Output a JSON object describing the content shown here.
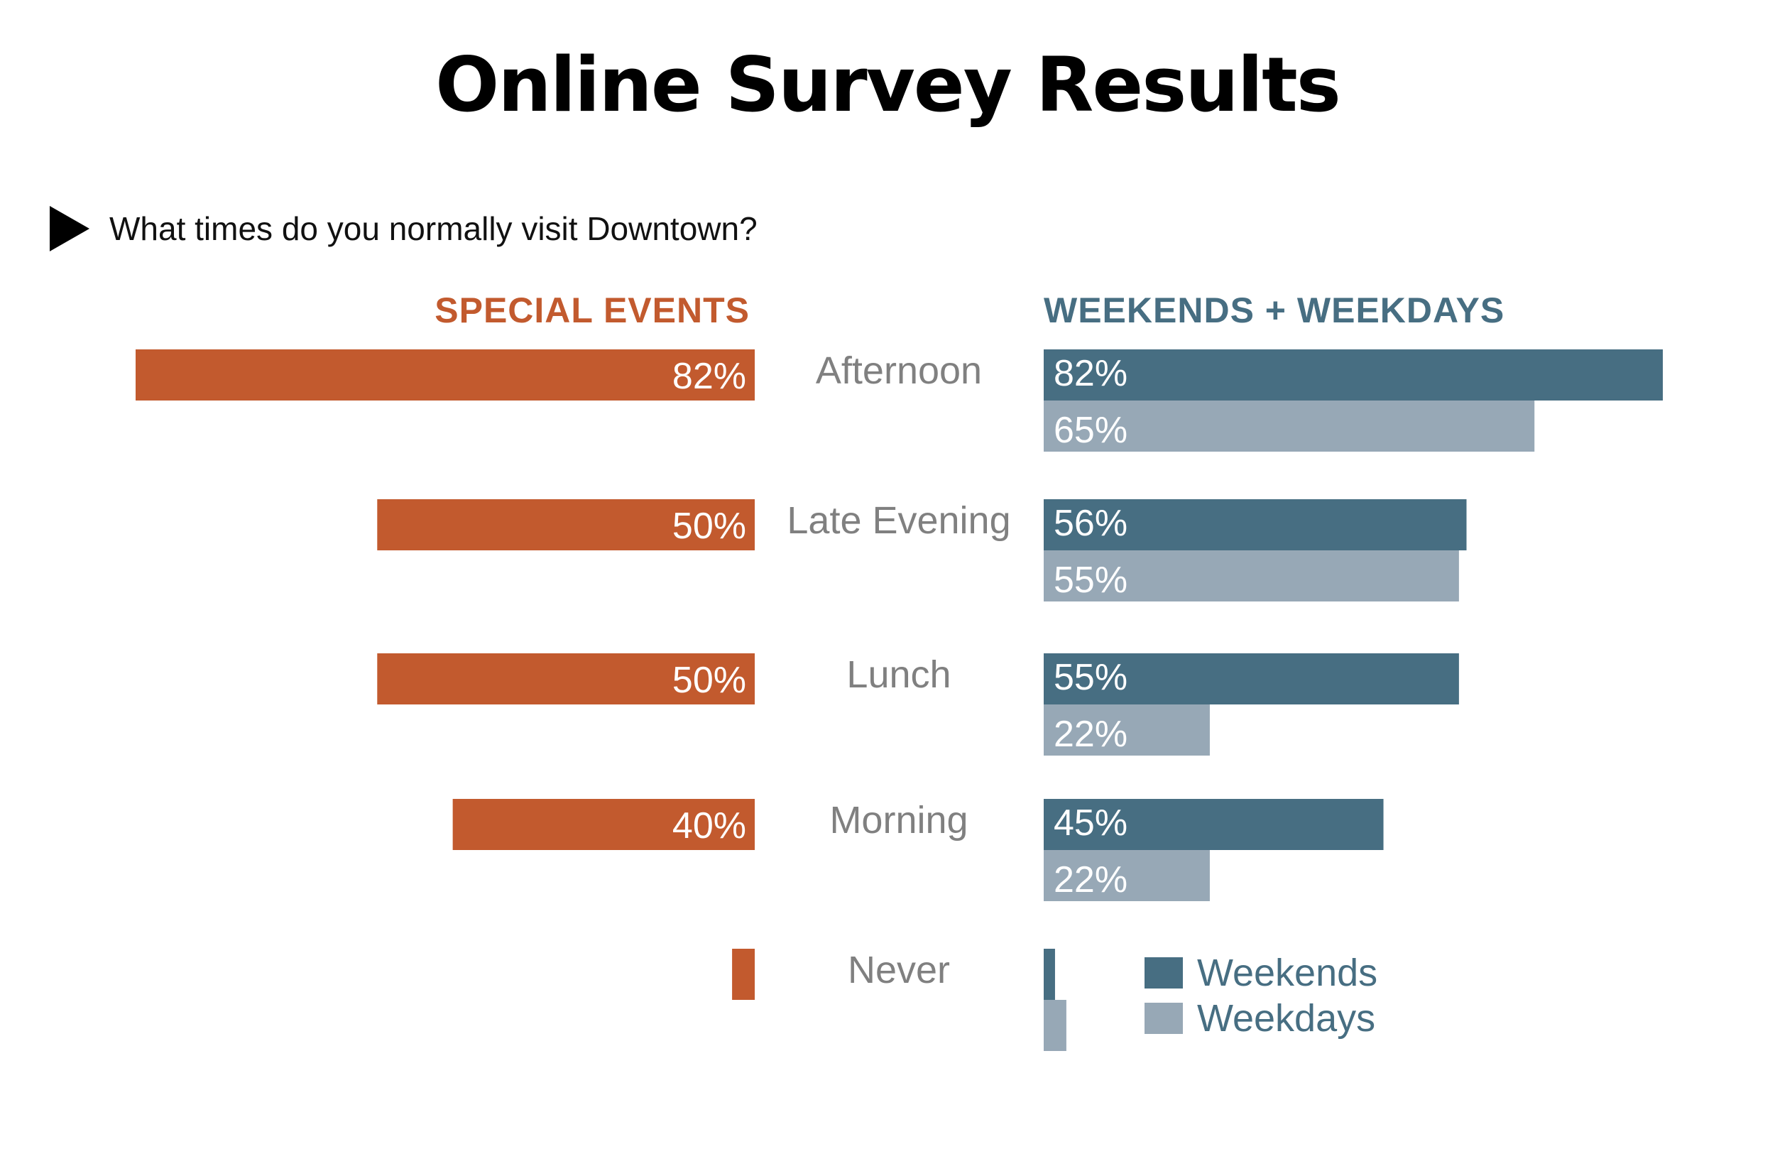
{
  "title": "Online Survey Results",
  "question": "What times do you normally visit Downtown?",
  "headings": {
    "left": "SPECIAL EVENTS",
    "right": "WEEKENDS + WEEKDAYS"
  },
  "legend": {
    "weekends": "Weekends",
    "weekdays": "Weekdays"
  },
  "colors": {
    "special_events": "#c25a2e",
    "weekends": "#476e82",
    "weekdays": "#97a8b6",
    "category_label": "#808080"
  },
  "chart_data": {
    "type": "bar",
    "orientation": "horizontal",
    "categories": [
      "Afternoon",
      "Late Evening",
      "Lunch",
      "Morning",
      "Never"
    ],
    "series": [
      {
        "name": "SPECIAL EVENTS",
        "values": [
          82,
          50,
          50,
          40,
          3
        ],
        "labels": [
          "82%",
          "50%",
          "50%",
          "40%",
          ""
        ]
      },
      {
        "name": "Weekends",
        "values": [
          82,
          56,
          55,
          45,
          1.5
        ],
        "labels": [
          "82%",
          "56%",
          "55%",
          "45%",
          ""
        ]
      },
      {
        "name": "Weekdays",
        "values": [
          65,
          55,
          22,
          22,
          3
        ],
        "labels": [
          "65%",
          "55%",
          "22%",
          "22%",
          ""
        ]
      }
    ],
    "unit": "%",
    "xlim": [
      0,
      82
    ],
    "grid": false,
    "legend": "bottom-right"
  }
}
